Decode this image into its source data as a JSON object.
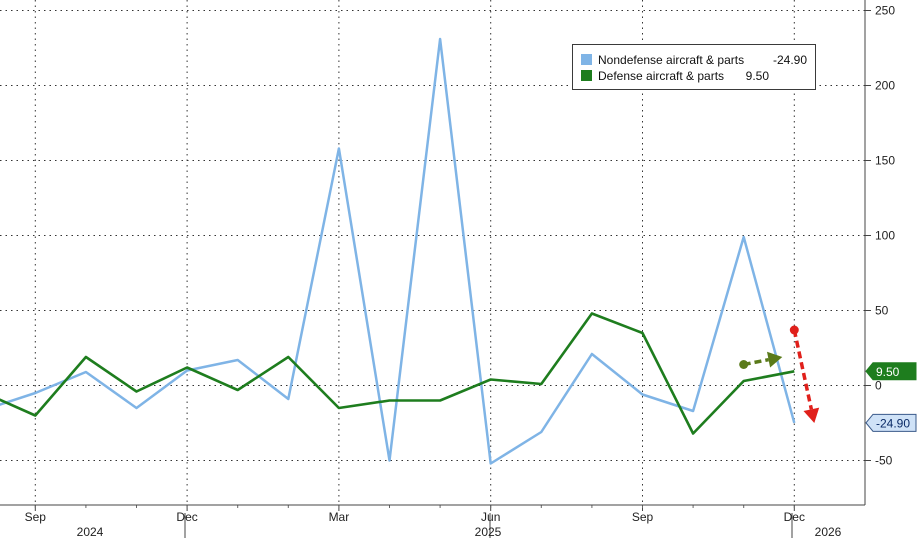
{
  "chart_data": {
    "type": "line",
    "x": [
      "2024-08",
      "2024-09",
      "2024-10",
      "2024-11",
      "2024-12",
      "2025-01",
      "2025-02",
      "2025-03",
      "2025-04",
      "2025-05",
      "2025-06",
      "2025-07",
      "2025-08",
      "2025-09",
      "2025-10",
      "2025-11",
      "2025-12"
    ],
    "x_tick_labels": [
      "Sep",
      "Dec",
      "Mar",
      "Jun",
      "Sep",
      "Dec"
    ],
    "x_tick_values": [
      "2024-09",
      "2024-12",
      "2025-03",
      "2025-06",
      "2025-09",
      "2025-12"
    ],
    "year_labels": [
      "2024",
      "2025",
      "2026"
    ],
    "ylim": [
      -80,
      250
    ],
    "yticks": [
      -50,
      0,
      50,
      100,
      150,
      200,
      250
    ],
    "grid": true,
    "y_axis_side": "right",
    "legend_position": "top-right",
    "series": [
      {
        "name": "Nondefense aircraft & parts",
        "color": "#7fb4e6",
        "values": [
          -16,
          -5,
          9,
          -15,
          10,
          17,
          -9,
          158,
          -50,
          231,
          -52,
          -31,
          21,
          -6,
          -17,
          99,
          -24.9
        ],
        "last_value_label": "-24.90"
      },
      {
        "name": "Defense aircraft & parts",
        "color": "#1e7d1e",
        "values": [
          -5,
          -20,
          19,
          -4,
          12,
          -3,
          19,
          -15,
          -10,
          -10,
          4,
          1,
          48,
          35,
          -32,
          3,
          9.5
        ],
        "last_value_label": "9.50"
      }
    ],
    "annotations": [
      {
        "type": "arrow",
        "color": "#5a7a1a",
        "direction": "right",
        "from": [
          "2025-11",
          14
        ],
        "to": [
          "2025-12",
          19
        ]
      },
      {
        "type": "arrow",
        "color": "#e0201b",
        "direction": "down",
        "from": [
          "2025-12",
          37
        ],
        "to": [
          "2025-12",
          -25
        ]
      }
    ]
  }
}
